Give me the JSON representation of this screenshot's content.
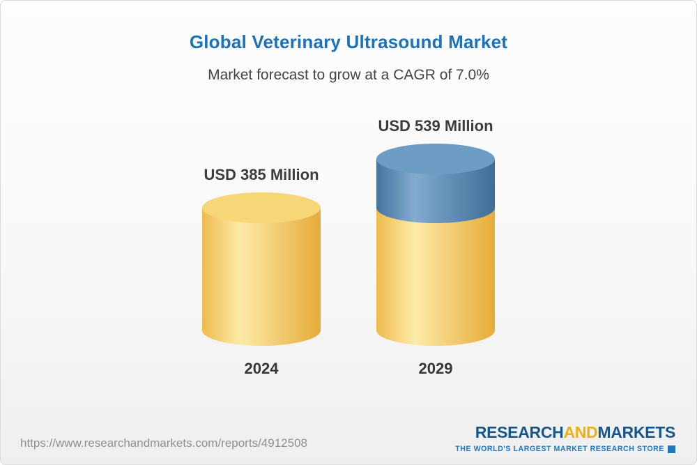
{
  "header": {
    "title": "Global Veterinary Ultrasound Market",
    "subtitle": "Market forecast to grow at a CAGR of 7.0%"
  },
  "chart_data": {
    "type": "bar",
    "variant": "3d-cylinder",
    "categories": [
      "2024",
      "2029"
    ],
    "values": [
      385,
      539
    ],
    "value_labels": [
      "USD 385 Million",
      "USD 539 Million"
    ],
    "unit": "USD Million",
    "title": "Global Veterinary Ultrasound Market",
    "subtitle": "Market forecast to grow at a CAGR of 7.0%",
    "cagr": "7.0%",
    "growth_overlay": {
      "applies_to_index": 1,
      "base_value": 385
    },
    "colors": {
      "base_body": [
        "#eebb4e",
        "#fdeaa8",
        "#e6ab3a"
      ],
      "base_top": "#f7d678",
      "growth_body": [
        "#44749f",
        "#82abce",
        "#3e6d98"
      ],
      "growth_top": "#6d9dc5"
    },
    "legend": false,
    "grid": false
  },
  "footer": {
    "url": "https://www.researchandmarkets.com/reports/4912508",
    "logo": {
      "part_research": "RESEARCH",
      "part_and": "AND",
      "part_markets": "MARKETS",
      "tagline": "THE WORLD'S LARGEST MARKET RESEARCH STORE"
    }
  }
}
